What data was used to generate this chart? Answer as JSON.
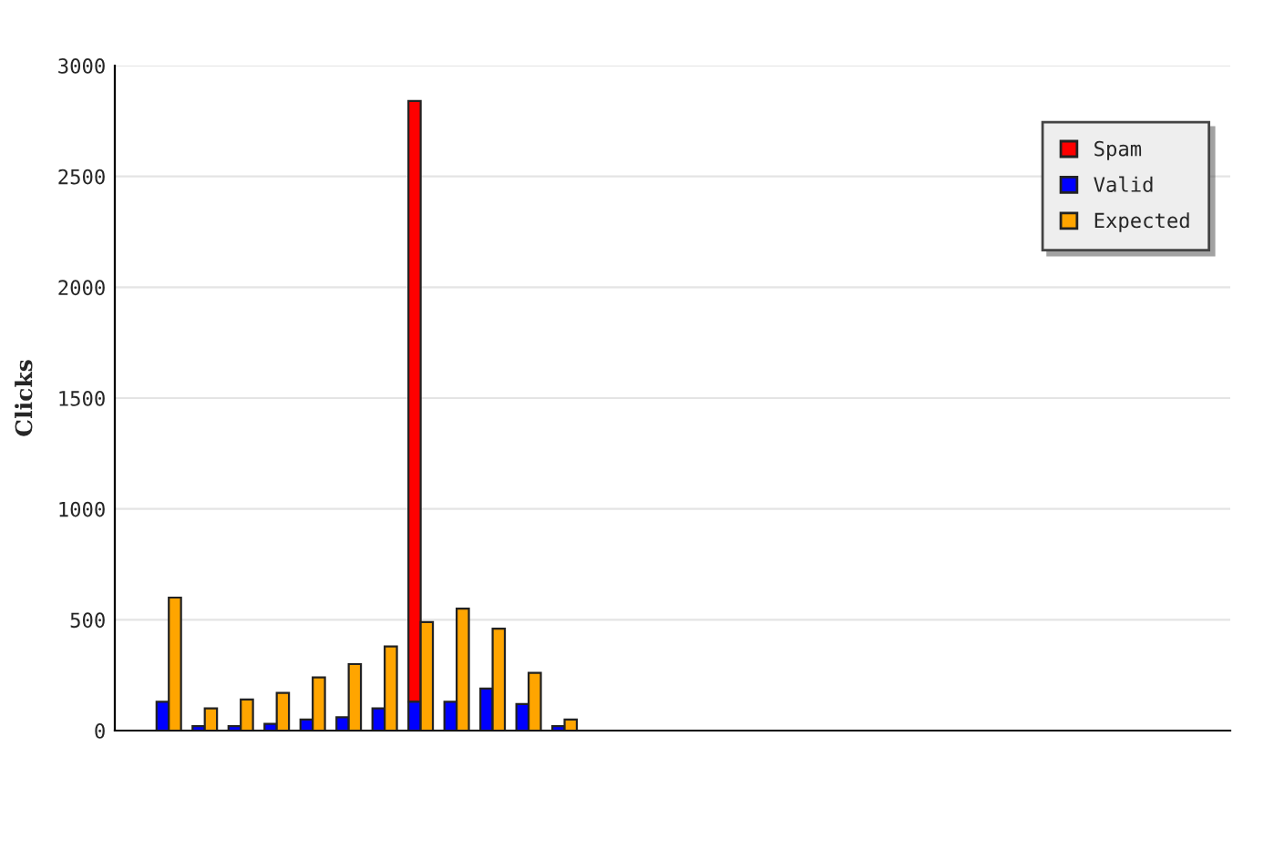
{
  "chart_data": {
    "type": "bar",
    "ylabel": "Clicks",
    "categories": [
      null,
      null,
      null,
      null,
      null,
      null,
      null,
      null,
      null,
      null,
      null,
      null,
      null,
      null,
      null,
      null,
      null,
      null,
      null,
      null,
      null,
      null,
      null,
      null,
      null,
      null,
      null,
      null,
      null,
      null,
      null
    ],
    "series": [
      {
        "name": "Spam",
        "color": "#ff0000",
        "base": [
          null,
          null,
          null,
          null,
          null,
          null,
          null,
          null,
          130,
          null,
          null,
          null,
          null,
          null,
          null,
          null,
          null,
          null,
          null,
          null,
          null,
          null,
          null,
          null,
          null,
          null,
          null,
          null,
          null,
          null,
          null
        ],
        "values": [
          null,
          null,
          null,
          null,
          null,
          null,
          null,
          null,
          2710,
          null,
          null,
          null,
          null,
          null,
          null,
          null,
          null,
          null,
          null,
          null,
          null,
          null,
          null,
          null,
          null,
          null,
          null,
          null,
          null,
          null,
          null
        ]
      },
      {
        "name": "Valid",
        "color": "#0000ff",
        "values": [
          null,
          130,
          20,
          20,
          30,
          50,
          60,
          100,
          130,
          130,
          190,
          120,
          20,
          null,
          null,
          null,
          null,
          null,
          null,
          null,
          null,
          null,
          null,
          null,
          null,
          null,
          null,
          null,
          null,
          null,
          null
        ]
      },
      {
        "name": "Expected",
        "color": "#ffa500",
        "values": [
          null,
          600,
          100,
          140,
          170,
          240,
          300,
          380,
          490,
          550,
          460,
          260,
          50,
          null,
          null,
          null,
          null,
          null,
          null,
          null,
          null,
          null,
          null,
          null,
          null,
          null,
          null,
          null,
          null,
          null,
          null
        ]
      }
    ],
    "ylim": [
      0,
      3000
    ],
    "yticks": [
      0,
      500,
      1000,
      1500,
      2000,
      2500,
      3000
    ],
    "grid": "y",
    "legend": "top right",
    "tick_labels": "y"
  }
}
